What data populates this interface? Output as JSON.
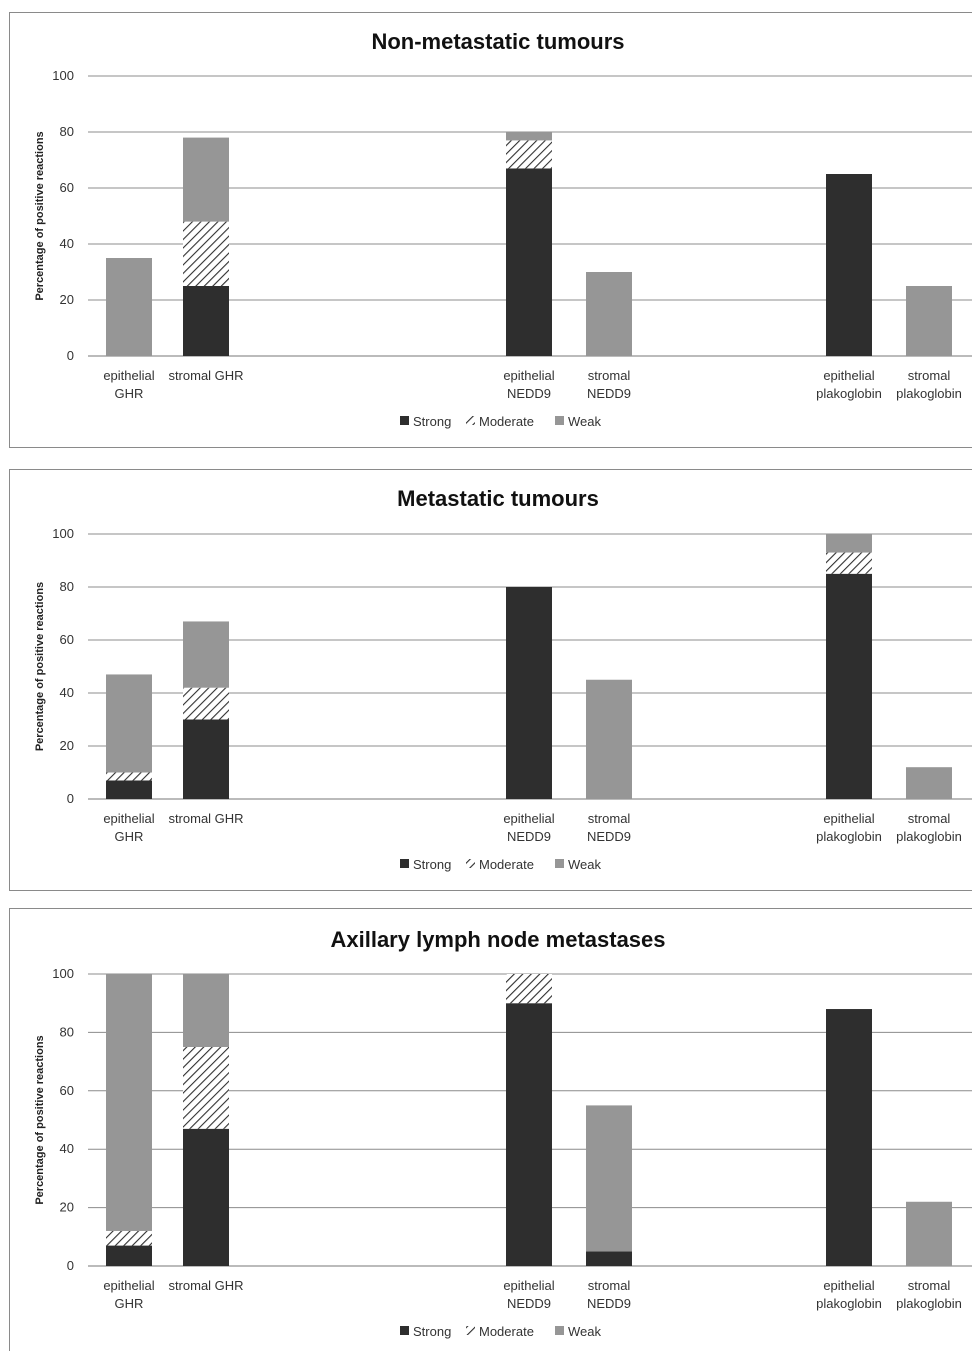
{
  "chart_data": [
    {
      "type": "bar",
      "stacked": true,
      "title": "Non-metastatic tumours",
      "ylabel": "Percentage of positive reactions",
      "xlabel": "",
      "ylim": [
        0,
        100
      ],
      "yticks": [
        "0",
        "20",
        "40",
        "60",
        "80",
        "100"
      ],
      "grid": true,
      "legend_position": "bottom",
      "categories": [
        [
          "epithelial",
          "GHR"
        ],
        [
          "stromal GHR"
        ],
        [
          "epithelial",
          "NEDD9"
        ],
        [
          "stromal",
          "NEDD9"
        ],
        [
          "epithelial",
          "plakoglobin"
        ],
        [
          "stromal",
          "plakoglobin"
        ]
      ],
      "series": [
        {
          "name": "Strong",
          "values": [
            0,
            25,
            67,
            0,
            65,
            0
          ]
        },
        {
          "name": "Moderate",
          "values": [
            0,
            23,
            10,
            0,
            0,
            0
          ]
        },
        {
          "name": "Weak",
          "values": [
            35,
            30,
            3,
            30,
            0,
            25
          ]
        }
      ]
    },
    {
      "type": "bar",
      "stacked": true,
      "title": "Metastatic tumours",
      "ylabel": "Percentage of positive reactions",
      "xlabel": "",
      "ylim": [
        0,
        100
      ],
      "yticks": [
        "0",
        "20",
        "40",
        "60",
        "80",
        "100"
      ],
      "grid": true,
      "legend_position": "bottom",
      "categories": [
        [
          "epithelial",
          "GHR"
        ],
        [
          "stromal GHR"
        ],
        [
          "epithelial",
          "NEDD9"
        ],
        [
          "stromal",
          "NEDD9"
        ],
        [
          "epithelial",
          "plakoglobin"
        ],
        [
          "stromal",
          "plakoglobin"
        ]
      ],
      "series": [
        {
          "name": "Strong",
          "values": [
            7,
            30,
            80,
            0,
            85,
            0
          ]
        },
        {
          "name": "Moderate",
          "values": [
            3,
            12,
            0,
            0,
            8,
            0
          ]
        },
        {
          "name": "Weak",
          "values": [
            37,
            25,
            0,
            45,
            7,
            12
          ]
        }
      ]
    },
    {
      "type": "bar",
      "stacked": true,
      "title": "Axillary lymph node metastases",
      "ylabel": "Percentage of positive reactions",
      "xlabel": "",
      "ylim": [
        0,
        100
      ],
      "yticks": [
        "0",
        "20",
        "40",
        "60",
        "80",
        "100"
      ],
      "grid": true,
      "legend_position": "bottom",
      "categories": [
        [
          "epithelial",
          "GHR"
        ],
        [
          "stromal GHR"
        ],
        [
          "epithelial",
          "NEDD9"
        ],
        [
          "stromal",
          "NEDD9"
        ],
        [
          "epithelial",
          "plakoglobin"
        ],
        [
          "stromal",
          "plakoglobin"
        ]
      ],
      "series": [
        {
          "name": "Strong",
          "values": [
            7,
            47,
            90,
            5,
            88,
            0
          ]
        },
        {
          "name": "Moderate",
          "values": [
            5,
            28,
            10,
            0,
            0,
            0
          ]
        },
        {
          "name": "Weak",
          "values": [
            88,
            25,
            0,
            50,
            0,
            22
          ]
        }
      ]
    }
  ],
  "colors": {
    "Strong": "#2e2e2e",
    "Moderate": "hatch",
    "Weak": "#969696",
    "grid": "#8c8c8c"
  }
}
